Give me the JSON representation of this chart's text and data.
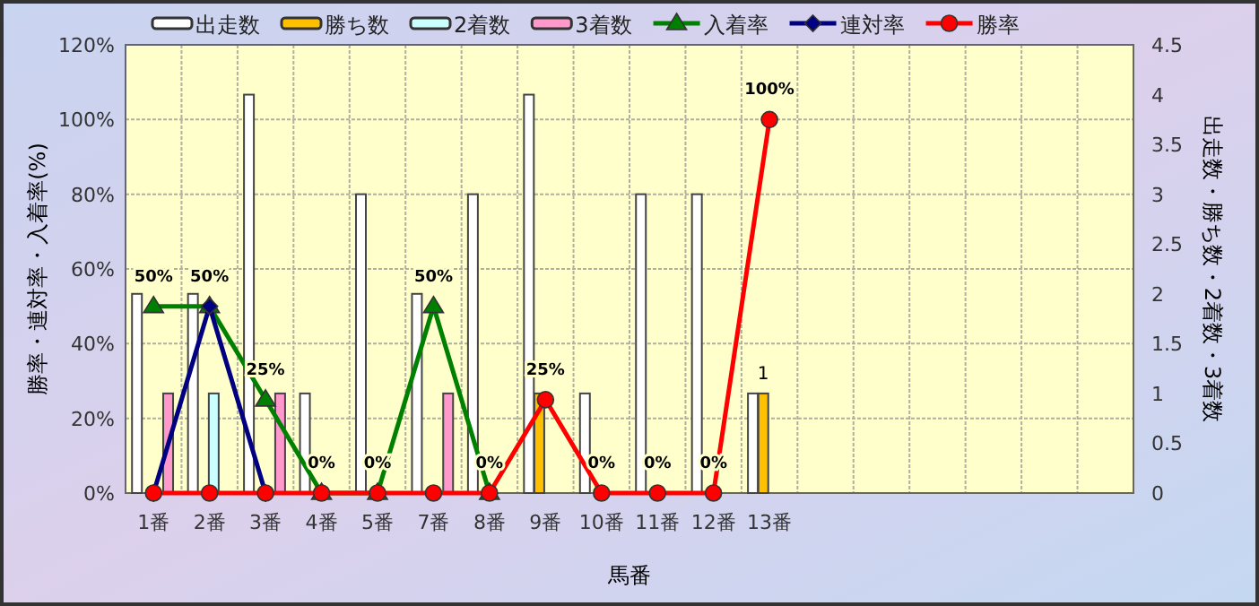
{
  "chart_data": {
    "type": "bar",
    "xlabel": "馬番",
    "ylabel": "勝率・連対率・入着率(%)",
    "y2label": "出走数・勝ち数・2着数・3着数",
    "categories": [
      "1番",
      "2番",
      "3番",
      "4番",
      "5番",
      "7番",
      "8番",
      "9番",
      "10番",
      "11番",
      "12番",
      "13番",
      null,
      null,
      null,
      null,
      null,
      null
    ],
    "series": [
      {
        "name": "出走数",
        "axis": "y2",
        "color": "#ffffff",
        "values": [
          2,
          2,
          4,
          1,
          3,
          2,
          3,
          4,
          1,
          3,
          3,
          1,
          null,
          null,
          null,
          null,
          null,
          null
        ]
      },
      {
        "name": "勝ち数",
        "axis": "y2",
        "color": "#ffc000",
        "values": [
          null,
          null,
          null,
          null,
          null,
          null,
          null,
          1,
          null,
          null,
          null,
          1,
          null,
          null,
          null,
          null,
          null,
          null
        ],
        "value_labels": [
          null,
          null,
          null,
          null,
          null,
          null,
          null,
          null,
          null,
          null,
          null,
          "1",
          null,
          null,
          null,
          null,
          null,
          null
        ]
      },
      {
        "name": "2着数",
        "axis": "y2",
        "color": "#ccffff",
        "values": [
          null,
          1,
          null,
          null,
          null,
          null,
          null,
          null,
          null,
          null,
          null,
          null,
          null,
          null,
          null,
          null,
          null,
          null
        ]
      },
      {
        "name": "3着数",
        "axis": "y2",
        "color": "#ff99cc",
        "values": [
          1,
          null,
          1,
          null,
          null,
          1,
          null,
          null,
          null,
          null,
          null,
          null,
          null,
          null,
          null,
          null,
          null,
          null
        ]
      },
      {
        "name": "入着率",
        "type": "line",
        "marker": "triangle",
        "color": "#008000",
        "values": [
          50,
          50,
          25,
          0,
          0,
          50,
          0,
          null,
          null,
          null,
          null,
          null,
          null,
          null,
          null,
          null,
          null,
          null
        ],
        "value_labels": [
          "50%",
          "50%",
          "25%",
          "0%",
          "0%",
          "50%",
          "0%",
          null,
          null,
          null,
          null,
          null,
          null,
          null,
          null,
          null,
          null,
          null
        ]
      },
      {
        "name": "連対率",
        "type": "line",
        "marker": "diamond",
        "color": "#000080",
        "values": [
          0,
          50,
          0,
          null,
          null,
          null,
          null,
          null,
          null,
          null,
          null,
          null,
          null,
          null,
          null,
          null,
          null,
          null
        ]
      },
      {
        "name": "勝率",
        "type": "line",
        "marker": "circle",
        "color": "#ff0000",
        "values": [
          0,
          0,
          0,
          0,
          0,
          0,
          0,
          25,
          0,
          0,
          0,
          100,
          null,
          null,
          null,
          null,
          null,
          null
        ],
        "value_labels": [
          null,
          null,
          null,
          null,
          null,
          null,
          null,
          "25%",
          "0%",
          "0%",
          "0%",
          "100%",
          null,
          null,
          null,
          null,
          null,
          null
        ]
      }
    ],
    "ylim": [
      0,
      120
    ],
    "yticks": [
      {
        "value": 0,
        "label": "0%"
      },
      {
        "value": 20,
        "label": "20%"
      },
      {
        "value": 40,
        "label": "40%"
      },
      {
        "value": 60,
        "label": "60%"
      },
      {
        "value": 80,
        "label": "80%"
      },
      {
        "value": 100,
        "label": "100%"
      },
      {
        "value": 120,
        "label": "120%"
      }
    ],
    "y2lim": [
      0,
      4.5
    ],
    "y2ticks": [
      0,
      0.5,
      1,
      1.5,
      2,
      2.5,
      3,
      3.5,
      4,
      4.5
    ],
    "grid": true,
    "legend": "top"
  }
}
